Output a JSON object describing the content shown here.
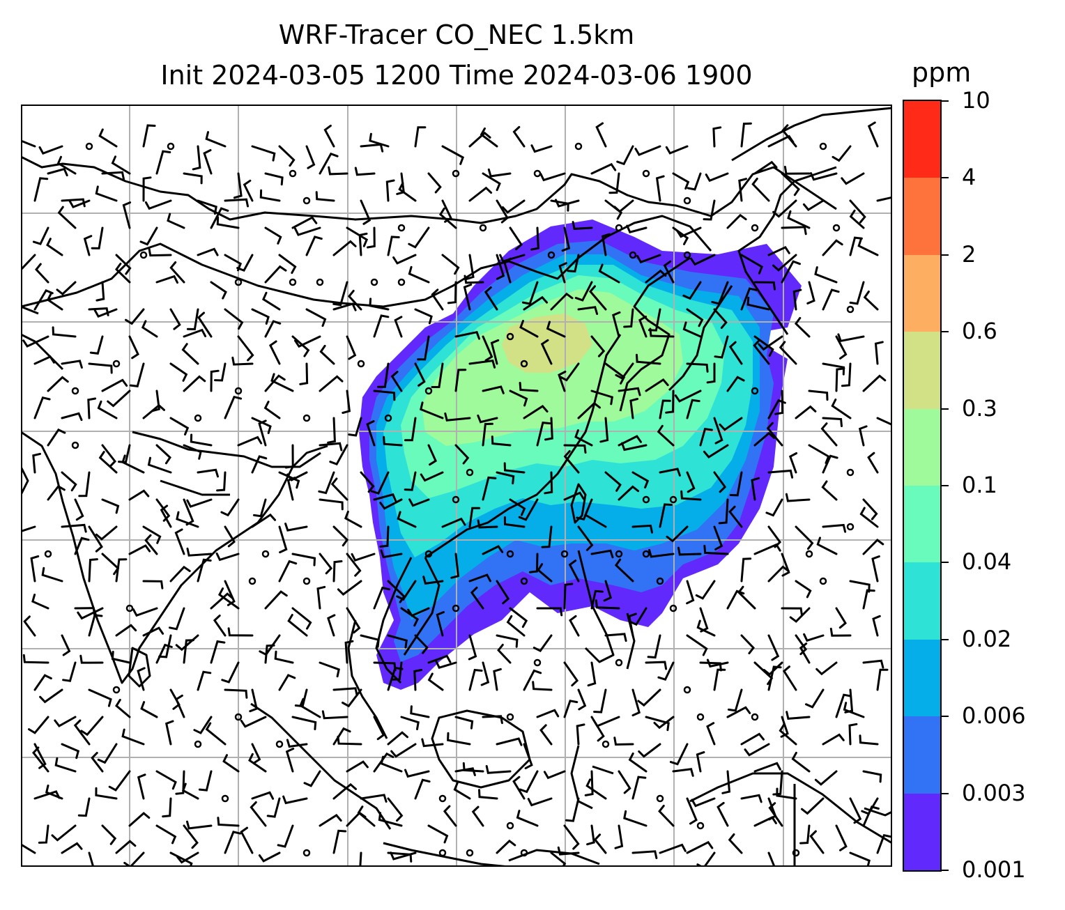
{
  "title": {
    "line1": "WRF-Tracer CO_NEC 1.5km",
    "line2": "Init 2024-03-05 1200 Time 2024-03-06 1900"
  },
  "colorbar": {
    "unit": "ppm",
    "ticks": [
      "0.001",
      "0.003",
      "0.006",
      "0.02",
      "0.04",
      "0.1",
      "0.3",
      "0.6",
      "2",
      "4",
      "10"
    ],
    "colors": [
      "#6229fc",
      "#3273f5",
      "#05aee8",
      "#2ee2d6",
      "#69fbbb",
      "#9ffa9b",
      "#d2e185",
      "#fdae61",
      "#fe723b",
      "#ff2a17"
    ]
  },
  "map": {
    "type": "filled-contour-with-wind-barbs",
    "variable": "CO_NEC tracer",
    "gridlines": true,
    "coastline_color": "#000000",
    "gridline_color": "#b0b0b0"
  }
}
